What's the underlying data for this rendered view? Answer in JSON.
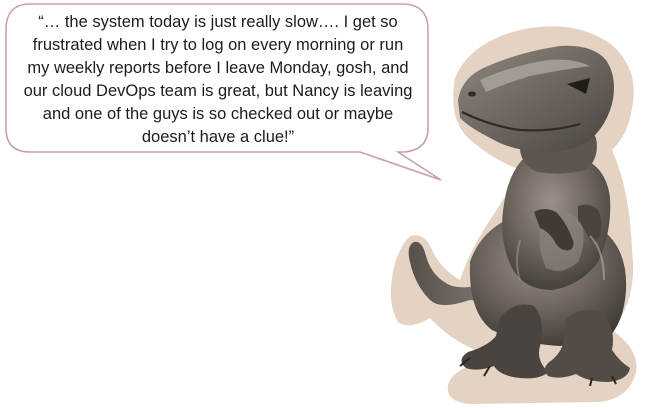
{
  "quote": {
    "text": "“… the system today is just really slow…. I get so frustrated when I try to log on every morning or run my weekly reports before I leave Monday, gosh, and our cloud DevOps team is great, but Nancy is leaving and one of the guys is so checked out or maybe doesn’t have a clue!”"
  },
  "colors": {
    "bubble_border": "#c9a0a8",
    "bubble_fill": "#ffffff",
    "halo": "#ddc8b3",
    "dino_body": "#6b635c",
    "dino_dark": "#3a3532",
    "dino_highlight": "#a49b93"
  },
  "figure": {
    "subject": "toy-tyrannosaurus",
    "tone": "sepia-grayscale"
  }
}
